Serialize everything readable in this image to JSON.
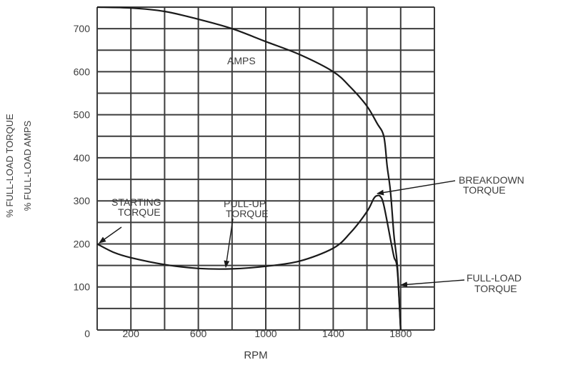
{
  "chart_data": {
    "type": "line",
    "title": "",
    "xlabel": "RPM",
    "ylabel": [
      "% FULL-LOAD TORQUE",
      "% FULL-LOAD AMPS"
    ],
    "xlim": [
      0,
      2000
    ],
    "ylim": [
      0,
      750
    ],
    "grid": true,
    "x_ticks": [
      {
        "value": 0,
        "label": "0"
      },
      {
        "value": 200,
        "label": "200"
      },
      {
        "value": 600,
        "label": "600"
      },
      {
        "value": 1000,
        "label": "1000"
      },
      {
        "value": 1400,
        "label": "1400"
      },
      {
        "value": 1800,
        "label": "1800"
      }
    ],
    "y_ticks": [
      {
        "value": 100,
        "label": "100"
      },
      {
        "value": 200,
        "label": "200"
      },
      {
        "value": 300,
        "label": "300"
      },
      {
        "value": 400,
        "label": "400"
      },
      {
        "value": 500,
        "label": "500"
      },
      {
        "value": 600,
        "label": "600"
      },
      {
        "value": 700,
        "label": "700"
      }
    ],
    "x_grid_step": 200,
    "y_grid_step": 50,
    "series": [
      {
        "name": "AMPS",
        "x": [
          0,
          200,
          400,
          600,
          800,
          1000,
          1200,
          1400,
          1500,
          1600,
          1660,
          1700,
          1720,
          1740,
          1760,
          1780,
          1800
        ],
        "values": [
          750,
          748,
          740,
          722,
          700,
          670,
          640,
          600,
          565,
          520,
          480,
          450,
          380,
          320,
          220,
          150,
          0
        ]
      },
      {
        "name": "TORQUE",
        "x": [
          0,
          100,
          200,
          400,
          600,
          800,
          1000,
          1200,
          1400,
          1500,
          1600,
          1640,
          1660,
          1680,
          1700,
          1740,
          1760,
          1780,
          1800
        ],
        "values": [
          200,
          180,
          168,
          152,
          143,
          142,
          148,
          160,
          190,
          225,
          275,
          305,
          312,
          310,
          290,
          210,
          170,
          140,
          0
        ]
      }
    ],
    "annotations": [
      {
        "label": [
          "AMPS"
        ],
        "x": 800,
        "y": 630
      },
      {
        "label": [
          "STARTING",
          "TORQUE"
        ],
        "target_x": 0,
        "target_y": 200
      },
      {
        "label": [
          "PULL-UP",
          "TORQUE"
        ],
        "target_x": 780,
        "target_y": 142
      },
      {
        "label": [
          "BREAKDOWN",
          "TORQUE"
        ],
        "target_x": 1660,
        "target_y": 312
      },
      {
        "label": [
          "FULL-LOAD",
          "TORQUE"
        ],
        "target_x": 1800,
        "target_y": 100
      }
    ]
  },
  "labels": {
    "xlabel": "RPM",
    "ylabel_torque": "% FULL-LOAD TORQUE",
    "ylabel_amps": "% FULL-LOAD AMPS",
    "amps": "AMPS",
    "starting_1": "STARTING",
    "starting_2": "TORQUE",
    "pullup_1": "PULL-UP",
    "pullup_2": "TORQUE",
    "breakdown_1": "BREAKDOWN",
    "breakdown_2": "TORQUE",
    "fullload_1": "FULL-LOAD",
    "fullload_2": "TORQUE"
  }
}
